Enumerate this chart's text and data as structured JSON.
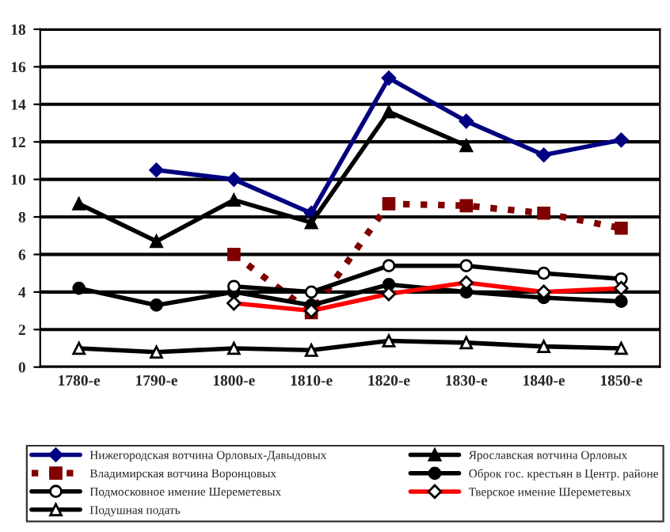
{
  "chart_data": {
    "type": "line",
    "categories": [
      "1780-е",
      "1790-е",
      "1800-е",
      "1810-е",
      "1820-е",
      "1830-е",
      "1840-е",
      "1850-е"
    ],
    "ylim": [
      0,
      18
    ],
    "yticks": [
      0,
      2,
      4,
      6,
      8,
      10,
      12,
      14,
      16,
      18
    ],
    "grid": "y",
    "legend": "bottom",
    "series": [
      {
        "name": "Нижегородская вотчина Орловых-Давыдовых",
        "color": "#000080",
        "marker": "diamond",
        "line_style": "solid",
        "values": [
          null,
          10.5,
          10.0,
          8.2,
          15.4,
          13.1,
          11.3,
          12.1
        ]
      },
      {
        "name": "Ярославская вотчина Орловых",
        "color": "#000000",
        "marker": "triangle",
        "line_style": "solid",
        "values": [
          8.7,
          6.7,
          8.9,
          7.7,
          13.6,
          11.8,
          null,
          null
        ]
      },
      {
        "name": "Владимирская вотчина Воронцовых",
        "color": "#800000",
        "marker": "square",
        "line_style": "dotted",
        "values": [
          null,
          null,
          6.0,
          2.9,
          8.7,
          8.6,
          8.2,
          7.4
        ]
      },
      {
        "name": "Оброк гос. крестьян в Центр. районе",
        "color": "#000000",
        "marker": "circle",
        "line_style": "solid",
        "values": [
          4.2,
          3.3,
          4.0,
          3.3,
          4.4,
          4.0,
          3.7,
          3.5
        ]
      },
      {
        "name": "Подмосковное имение Шереметевых",
        "color": "#000000",
        "marker": "circle",
        "line_style": "solid",
        "values": [
          null,
          null,
          4.3,
          4.0,
          5.4,
          5.4,
          5.0,
          4.7
        ]
      },
      {
        "name": "Тверское имение Шереметевых",
        "color": "#ff0000",
        "marker": "diamond",
        "line_style": "solid",
        "values": [
          null,
          null,
          3.4,
          3.0,
          3.9,
          4.5,
          4.0,
          4.2
        ]
      },
      {
        "name": "Подушная подать",
        "color": "#000000",
        "marker": "triangle",
        "line_style": "solid",
        "values": [
          1.0,
          0.8,
          1.0,
          0.9,
          1.4,
          1.3,
          1.1,
          1.0
        ]
      }
    ]
  }
}
